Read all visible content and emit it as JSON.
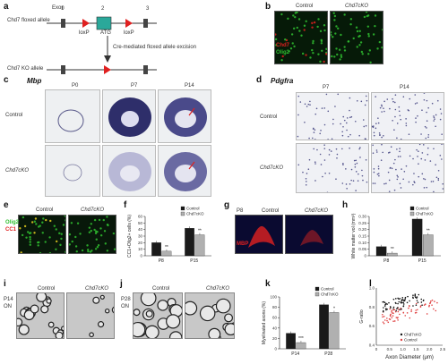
{
  "panels": {
    "a": {
      "label": "a",
      "floxed_allele_label": "Chd7 floxed allele",
      "exon_label": "Exon",
      "exon_numbers": [
        "1",
        "2",
        "3"
      ],
      "loxp_labels": [
        "loxP",
        "loxP"
      ],
      "atg_label": "ATG",
      "arrow_label": "Cre-mediated floxed allele excision",
      "ko_allele_label": "Chd7 KO allele"
    },
    "b": {
      "label": "b",
      "col_labels": [
        "Control",
        "Chd7cKO"
      ],
      "legend_chd7": "Chd7",
      "legend_olig2": "Olig2"
    },
    "c": {
      "label": "c",
      "gene": "Mbp",
      "col_labels": [
        "P0",
        "P7",
        "P14"
      ],
      "row_labels": [
        "Control",
        "Chd7cKO"
      ]
    },
    "d": {
      "label": "d",
      "gene": "Pdgfra",
      "col_labels": [
        "P7",
        "P14"
      ],
      "row_labels": [
        "Control",
        "Chd7cKO"
      ]
    },
    "e": {
      "label": "e",
      "col_labels": [
        "Control",
        "Chd7cKO"
      ],
      "legend_olig2": "Olig2",
      "legend_cc1": "CC1"
    },
    "f": {
      "label": "f",
      "ylabel": "CC1+Olig2+ cells (%)",
      "legend": [
        "Control",
        "Chd7cKO"
      ]
    },
    "g": {
      "label": "g",
      "age": "P8",
      "col_labels": [
        "Control",
        "Chd7cKO"
      ],
      "stain": "MBP"
    },
    "h": {
      "label": "h",
      "ylabel": "White matter vol (mm³)",
      "legend": [
        "Control",
        "Chd7cKO"
      ]
    },
    "i": {
      "label": "i",
      "age": "P14",
      "tissue": "ON",
      "col_labels": [
        "Control",
        "Chd7cKO"
      ]
    },
    "j": {
      "label": "j",
      "age": "P28",
      "tissue": "ON",
      "col_labels": [
        "Control",
        "Chd7cKO"
      ]
    },
    "k": {
      "label": "k",
      "ylabel": "Myelinated axons (%)",
      "legend": [
        "Control",
        "Chd7cKO"
      ]
    },
    "l": {
      "label": "l",
      "ylabel": "G-ratio",
      "xlabel": "Axon Diameter (μm)",
      "legend": [
        "Chd7cKO",
        "Control"
      ]
    }
  },
  "colors": {
    "control_bar": "#1a1a1a",
    "cko_bar": "#b0b0b0",
    "red_signal": "#e02020",
    "green_signal": "#30c030",
    "ish_stain": "#3a3a7a"
  },
  "chart_data": [
    {
      "type": "bar",
      "panel": "f",
      "categories": [
        "P8",
        "P15"
      ],
      "series": [
        {
          "name": "Control",
          "values": [
            20,
            42
          ]
        },
        {
          "name": "Chd7cKO",
          "values": [
            7,
            32
          ]
        }
      ],
      "ylim": [
        0,
        60
      ],
      "yticks": [
        "0",
        "10",
        "20",
        "30",
        "40",
        "50",
        "60"
      ],
      "significance": [
        "**",
        "**"
      ]
    },
    {
      "type": "bar",
      "panel": "h",
      "categories": [
        "P8",
        "P15"
      ],
      "series": [
        {
          "name": "Control",
          "values": [
            0.07,
            0.28
          ]
        },
        {
          "name": "Chd7cKO",
          "values": [
            0.02,
            0.16
          ]
        }
      ],
      "ylim": [
        0,
        0.3
      ],
      "yticks": [
        "0",
        "0.05",
        "0.10",
        "0.15",
        "0.20",
        "0.25",
        "0.30"
      ],
      "significance": [
        "**",
        "**"
      ]
    },
    {
      "type": "bar",
      "panel": "k",
      "categories": [
        "P14",
        "P28"
      ],
      "series": [
        {
          "name": "Control",
          "values": [
            30,
            85
          ]
        },
        {
          "name": "Chd7cKO",
          "values": [
            12,
            70
          ]
        }
      ],
      "ylim": [
        0,
        100
      ],
      "yticks": [
        "0",
        "20",
        "40",
        "60",
        "80",
        "100"
      ],
      "significance": [
        "***",
        "*"
      ]
    },
    {
      "type": "scatter",
      "panel": "l",
      "xlim": [
        0,
        2.5
      ],
      "ylim": [
        0.4,
        1.0
      ],
      "xticks": [
        "0",
        "0.5",
        "1.0",
        "1.5",
        "2.0",
        "2.5"
      ],
      "yticks": [
        "0.4",
        "0.6",
        "0.8",
        "1.0"
      ],
      "series": [
        {
          "name": "Control",
          "color": "#e04040"
        },
        {
          "name": "Chd7cKO",
          "color": "#111111"
        }
      ]
    }
  ]
}
